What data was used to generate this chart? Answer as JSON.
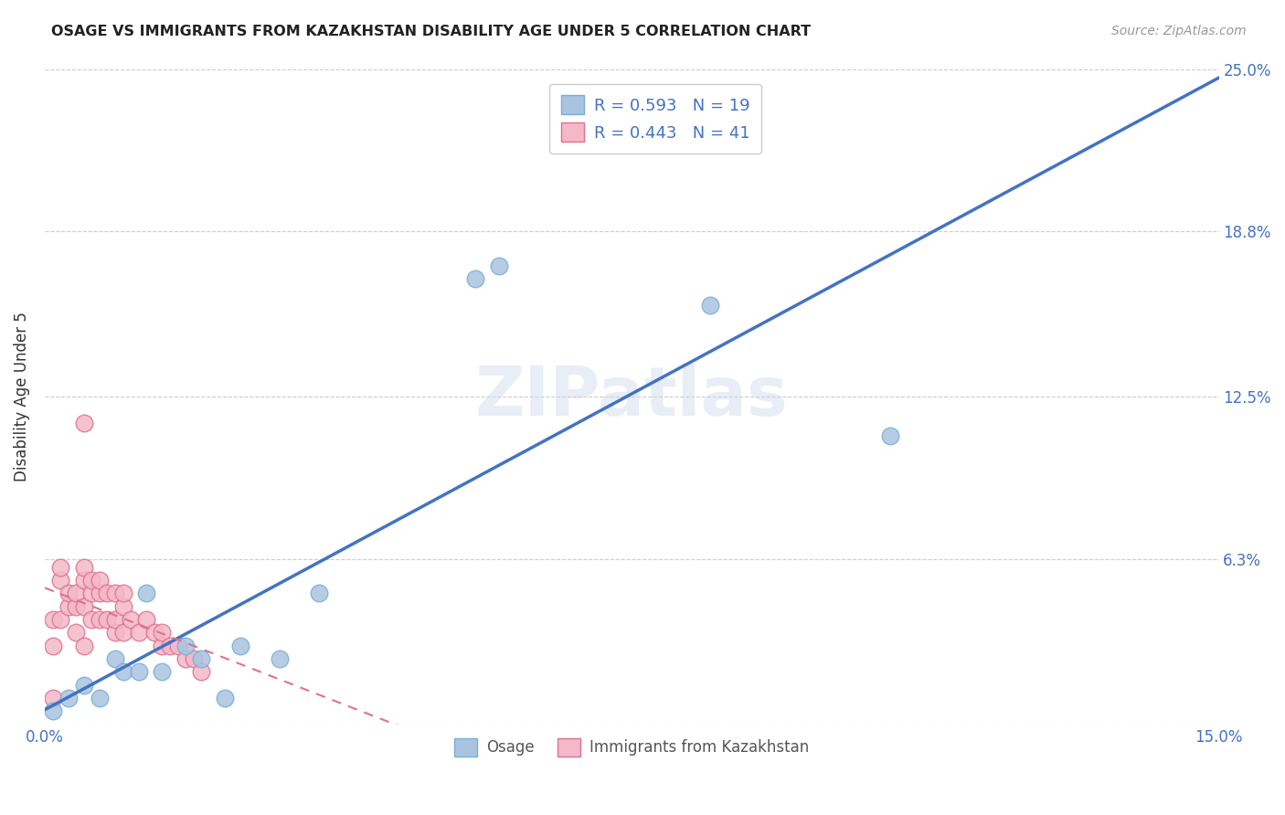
{
  "title": "OSAGE VS IMMIGRANTS FROM KAZAKHSTAN DISABILITY AGE UNDER 5 CORRELATION CHART",
  "source": "Source: ZipAtlas.com",
  "ylabel": "Disability Age Under 5",
  "xlim": [
    0.0,
    0.15
  ],
  "ylim": [
    0.0,
    0.25
  ],
  "background_color": "#ffffff",
  "watermark": "ZIPatlas",
  "osage_color": "#a8c4e0",
  "osage_edge_color": "#7bafd4",
  "immigrants_color": "#f4b8c8",
  "immigrants_edge_color": "#e07090",
  "osage_line_color": "#4472c4",
  "immigrants_line_color": "#e07090",
  "R_osage": 0.593,
  "N_osage": 19,
  "R_immigrants": 0.443,
  "N_immigrants": 41,
  "legend_labels": [
    "Osage",
    "Immigrants from Kazakhstan"
  ],
  "osage_x": [
    0.001,
    0.003,
    0.005,
    0.007,
    0.009,
    0.01,
    0.012,
    0.013,
    0.015,
    0.018,
    0.02,
    0.023,
    0.025,
    0.03,
    0.035,
    0.055,
    0.058,
    0.085,
    0.108
  ],
  "osage_y": [
    0.005,
    0.01,
    0.015,
    0.01,
    0.025,
    0.02,
    0.02,
    0.05,
    0.02,
    0.03,
    0.025,
    0.01,
    0.03,
    0.025,
    0.05,
    0.17,
    0.175,
    0.16,
    0.11
  ],
  "immigrants_x": [
    0.001,
    0.001,
    0.002,
    0.002,
    0.002,
    0.003,
    0.003,
    0.004,
    0.004,
    0.004,
    0.005,
    0.005,
    0.005,
    0.005,
    0.006,
    0.006,
    0.006,
    0.007,
    0.007,
    0.007,
    0.008,
    0.008,
    0.009,
    0.009,
    0.009,
    0.01,
    0.01,
    0.01,
    0.011,
    0.012,
    0.013,
    0.014,
    0.015,
    0.015,
    0.016,
    0.017,
    0.018,
    0.019,
    0.02,
    0.005,
    0.001
  ],
  "immigrants_y": [
    0.03,
    0.04,
    0.04,
    0.055,
    0.06,
    0.045,
    0.05,
    0.035,
    0.045,
    0.05,
    0.03,
    0.045,
    0.055,
    0.06,
    0.04,
    0.05,
    0.055,
    0.04,
    0.05,
    0.055,
    0.04,
    0.05,
    0.035,
    0.04,
    0.05,
    0.035,
    0.045,
    0.05,
    0.04,
    0.035,
    0.04,
    0.035,
    0.03,
    0.035,
    0.03,
    0.03,
    0.025,
    0.025,
    0.02,
    0.115,
    0.01
  ]
}
